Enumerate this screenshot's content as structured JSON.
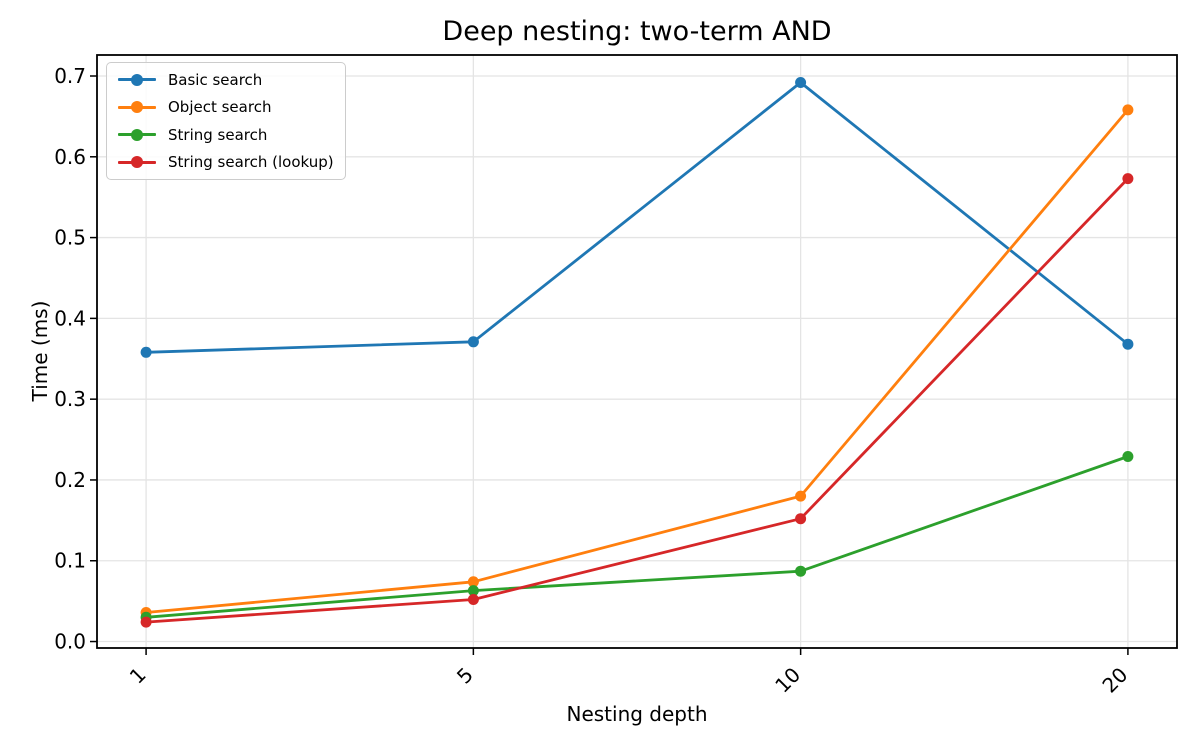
{
  "figure": {
    "title": "Deep nesting: two-term AND",
    "xlabel": "Nesting depth",
    "ylabel": "Time (ms)"
  },
  "chart_data": {
    "type": "line",
    "title": "Deep nesting: two-term AND",
    "xlabel": "Nesting depth",
    "ylabel": "Time (ms)",
    "categories": [
      "1",
      "5",
      "10",
      "20"
    ],
    "series": [
      {
        "name": "Basic search",
        "color": "#1f77b4",
        "values": [
          0.358,
          0.371,
          0.692,
          0.368
        ]
      },
      {
        "name": "Object search",
        "color": "#ff7f0e",
        "values": [
          0.036,
          0.074,
          0.18,
          0.658
        ]
      },
      {
        "name": "String search",
        "color": "#2ca02c",
        "values": [
          0.03,
          0.063,
          0.087,
          0.229
        ]
      },
      {
        "name": "String search (lookup)",
        "color": "#d62728",
        "values": [
          0.024,
          0.052,
          0.152,
          0.573
        ]
      }
    ],
    "y_ticks": [
      "0.0",
      "0.1",
      "0.2",
      "0.3",
      "0.4",
      "0.5",
      "0.6",
      "0.7"
    ],
    "ylim": [
      -0.008,
      0.726
    ],
    "grid": true,
    "legend_position": "upper left",
    "marker": "circle",
    "x_tick_rotation_deg": 45
  },
  "style": {
    "grid_color": "#e4e4e4",
    "spine_color": "#000000",
    "text_color": "#000000",
    "background": "#ffffff"
  }
}
